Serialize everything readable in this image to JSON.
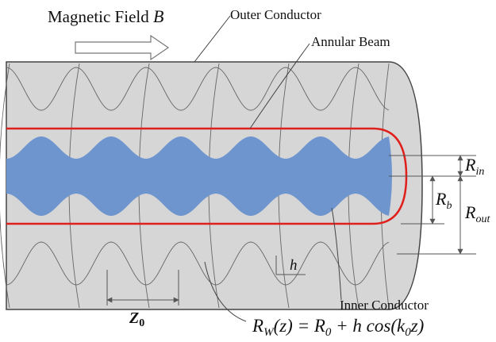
{
  "labels": {
    "magnetic_field": {
      "text": "Magnetic Field",
      "symbol": "B"
    },
    "outer_conductor": "Outer Conductor",
    "annular_beam": "Annular Beam",
    "inner_conductor": "Inner Conductor"
  },
  "dimensions": {
    "r_in": {
      "symbol": "R",
      "sub": "in"
    },
    "r_b": {
      "symbol": "R",
      "sub": "b"
    },
    "r_out": {
      "symbol": "R",
      "sub": "out"
    },
    "h": "h",
    "z0": {
      "symbol": "Z",
      "sub": "0"
    }
  },
  "formula": [
    {
      "t": "R"
    },
    {
      "t": "W",
      "sub": true
    },
    {
      "t": "(z) = R"
    },
    {
      "t": "0",
      "sub": true
    },
    {
      "t": " + h cos(k"
    },
    {
      "t": "0",
      "sub": true
    },
    {
      "t": "z)"
    }
  ]
}
